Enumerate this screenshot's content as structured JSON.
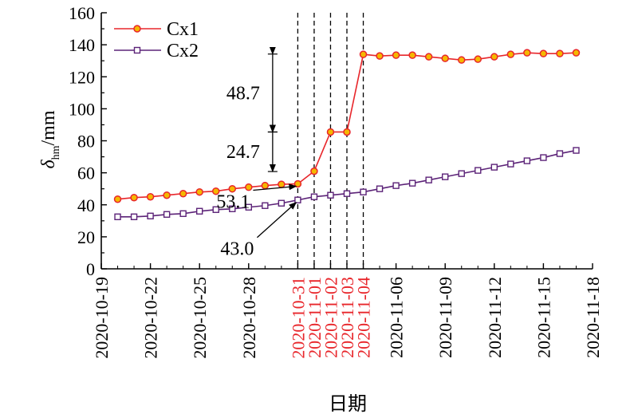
{
  "chart_data": {
    "type": "line",
    "title": "",
    "xlabel": "日期",
    "ylabel": {
      "symbol": "δ",
      "subscript": "hm",
      "unit": "/mm"
    },
    "ylim": [
      0,
      160
    ],
    "yticks": [
      0,
      20,
      40,
      60,
      80,
      100,
      120,
      140,
      160
    ],
    "xlim": [
      "2020-10-19",
      "2020-11-18"
    ],
    "xticks": [
      "2020-10-19",
      "2020-10-22",
      "2020-10-25",
      "2020-10-28",
      "2020-11-06",
      "2020-11-09",
      "2020-11-12",
      "2020-11-15",
      "2020-11-18"
    ],
    "highlight_dates": [
      "2020-10-31",
      "2020-11-01",
      "2020-11-02",
      "2020-11-03",
      "2020-11-04"
    ],
    "highlight_color": "#e8262b",
    "grid": false,
    "legend_position": "top-left",
    "series": [
      {
        "name": "Cx1",
        "color": "#e8262b",
        "marker": "circle",
        "marker_fill": "#f5b800",
        "x": [
          "2020-10-20",
          "2020-10-21",
          "2020-10-22",
          "2020-10-23",
          "2020-10-24",
          "2020-10-25",
          "2020-10-26",
          "2020-10-27",
          "2020-10-28",
          "2020-10-29",
          "2020-10-30",
          "2020-10-31",
          "2020-11-01",
          "2020-11-02",
          "2020-11-03",
          "2020-11-04",
          "2020-11-05",
          "2020-11-06",
          "2020-11-07",
          "2020-11-08",
          "2020-11-09",
          "2020-11-10",
          "2020-11-11",
          "2020-11-12",
          "2020-11-13",
          "2020-11-14",
          "2020-11-15",
          "2020-11-16",
          "2020-11-17"
        ],
        "y": [
          43.5,
          44.5,
          45,
          46,
          47,
          48,
          48.5,
          50,
          51,
          52,
          52.8,
          53.1,
          61,
          85.5,
          85.5,
          134,
          133,
          133.5,
          133.5,
          132.5,
          131.5,
          130.5,
          131,
          132.5,
          134,
          135,
          134.5,
          134.5,
          135
        ]
      },
      {
        "name": "Cx2",
        "color": "#5c2378",
        "marker": "square",
        "marker_fill": "#ffffff",
        "x": [
          "2020-10-20",
          "2020-10-21",
          "2020-10-22",
          "2020-10-23",
          "2020-10-24",
          "2020-10-25",
          "2020-10-26",
          "2020-10-27",
          "2020-10-28",
          "2020-10-29",
          "2020-10-30",
          "2020-10-31",
          "2020-11-01",
          "2020-11-02",
          "2020-11-03",
          "2020-11-04",
          "2020-11-05",
          "2020-11-06",
          "2020-11-07",
          "2020-11-08",
          "2020-11-09",
          "2020-11-10",
          "2020-11-11",
          "2020-11-12",
          "2020-11-13",
          "2020-11-14",
          "2020-11-15",
          "2020-11-16",
          "2020-11-17"
        ],
        "y": [
          32.5,
          32.5,
          33,
          34,
          34.5,
          36,
          37,
          37.5,
          38.5,
          39.5,
          41,
          43.0,
          45,
          46,
          47,
          48,
          50,
          52,
          53.5,
          55.5,
          57.5,
          59.5,
          61.5,
          63.5,
          65.5,
          67.5,
          69.5,
          72,
          74
        ]
      }
    ],
    "annotations": {
      "dimension_labels": [
        {
          "text": "48.7",
          "y_from": 85.5,
          "y_to": 134.2
        },
        {
          "text": "24.7",
          "y_from": 60.8,
          "y_to": 85.5
        }
      ],
      "dimension_x": "2020-10-30",
      "point_labels": [
        {
          "text": "53.1",
          "x": "2020-10-31",
          "y": 53.1
        },
        {
          "text": "43.0",
          "x": "2020-10-31",
          "y": 43.0
        }
      ]
    }
  }
}
